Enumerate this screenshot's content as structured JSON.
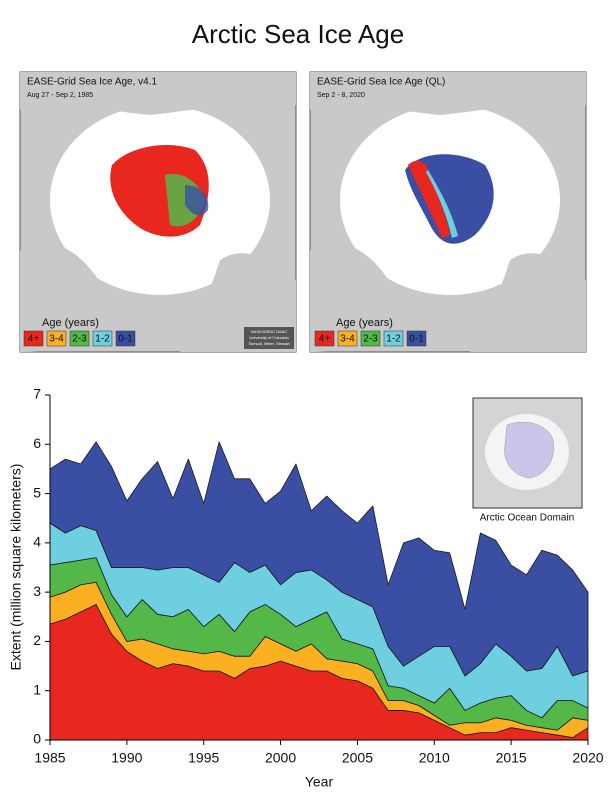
{
  "title": "Arctic Sea Ice Age",
  "maps": [
    {
      "title": "EASE-Grid Sea Ice Age, v4.1",
      "date": "Aug 27 - Sep 2, 1985",
      "legend_title": "Age (years)",
      "credit": [
        "NASA NSIDC DAAC",
        "University of Colorado",
        "Tschudi, Meier, Stewart"
      ]
    },
    {
      "title": "EASE-Grid Sea Ice Age (QL)",
      "date": "Sep 2 - 8, 2020",
      "legend_title": "Age (years)"
    }
  ],
  "chart_data": {
    "type": "stacked_area",
    "xlabel": "Year",
    "ylabel": "Extent (million square kilometers)",
    "inset_label": "Arctic Ocean Domain",
    "x": [
      1985,
      1986,
      1987,
      1988,
      1989,
      1990,
      1991,
      1992,
      1993,
      1994,
      1995,
      1996,
      1997,
      1998,
      1999,
      2000,
      2001,
      2002,
      2003,
      2004,
      2005,
      2006,
      2007,
      2008,
      2009,
      2010,
      2011,
      2012,
      2013,
      2014,
      2015,
      2016,
      2017,
      2018,
      2019,
      2020
    ],
    "xlim": [
      1985,
      2020
    ],
    "xticks": [
      1985,
      1990,
      1995,
      2000,
      2005,
      2010,
      2015,
      2020
    ],
    "ylim": [
      0,
      7
    ],
    "yticks": [
      0,
      1,
      2,
      3,
      4,
      5,
      6,
      7
    ],
    "series": [
      {
        "name": "4+",
        "color": "#e8281f",
        "values": [
          2.35,
          2.45,
          2.6,
          2.75,
          2.15,
          1.8,
          1.6,
          1.45,
          1.55,
          1.5,
          1.4,
          1.4,
          1.25,
          1.45,
          1.5,
          1.6,
          1.5,
          1.4,
          1.4,
          1.25,
          1.2,
          1.05,
          0.6,
          0.6,
          0.55,
          0.4,
          0.25,
          0.1,
          0.15,
          0.15,
          0.25,
          0.2,
          0.15,
          0.1,
          0.05,
          0.25
        ]
      },
      {
        "name": "3-4",
        "color": "#fbb022",
        "values": [
          0.55,
          0.55,
          0.55,
          0.45,
          0.4,
          0.2,
          0.45,
          0.5,
          0.3,
          0.3,
          0.35,
          0.4,
          0.45,
          0.25,
          0.6,
          0.35,
          0.3,
          0.55,
          0.25,
          0.35,
          0.35,
          0.35,
          0.2,
          0.2,
          0.15,
          0.1,
          0.05,
          0.25,
          0.2,
          0.3,
          0.15,
          0.1,
          0.1,
          0.1,
          0.4,
          0.15
        ]
      },
      {
        "name": "2-3",
        "color": "#54b848",
        "values": [
          0.65,
          0.6,
          0.5,
          0.5,
          0.4,
          0.5,
          0.8,
          0.6,
          0.65,
          0.85,
          0.55,
          0.75,
          0.5,
          0.9,
          0.65,
          0.6,
          0.5,
          0.5,
          0.95,
          0.45,
          0.4,
          0.45,
          0.3,
          0.25,
          0.2,
          0.25,
          0.75,
          0.25,
          0.4,
          0.4,
          0.5,
          0.3,
          0.2,
          0.6,
          0.35,
          0.25
        ]
      },
      {
        "name": "1-2",
        "color": "#6ecfe0",
        "values": [
          0.85,
          0.6,
          0.7,
          0.55,
          0.55,
          1.0,
          0.65,
          0.9,
          1.0,
          0.85,
          1.05,
          0.65,
          1.4,
          0.8,
          0.8,
          0.6,
          1.1,
          1.0,
          0.65,
          0.95,
          0.9,
          0.85,
          0.8,
          0.45,
          0.8,
          1.15,
          0.85,
          0.7,
          0.8,
          1.1,
          0.8,
          0.8,
          1.0,
          1.1,
          0.5,
          0.75
        ]
      },
      {
        "name": "0-1",
        "color": "#3a4fa3",
        "values": [
          1.1,
          1.5,
          1.25,
          1.8,
          2.05,
          1.35,
          1.8,
          2.2,
          1.4,
          2.2,
          1.45,
          2.85,
          1.7,
          1.9,
          1.25,
          1.9,
          2.2,
          1.2,
          1.7,
          1.65,
          1.55,
          2.05,
          1.25,
          2.5,
          2.4,
          1.95,
          1.9,
          1.35,
          2.65,
          2.1,
          1.85,
          1.95,
          2.4,
          1.85,
          2.15,
          1.6
        ]
      }
    ]
  }
}
